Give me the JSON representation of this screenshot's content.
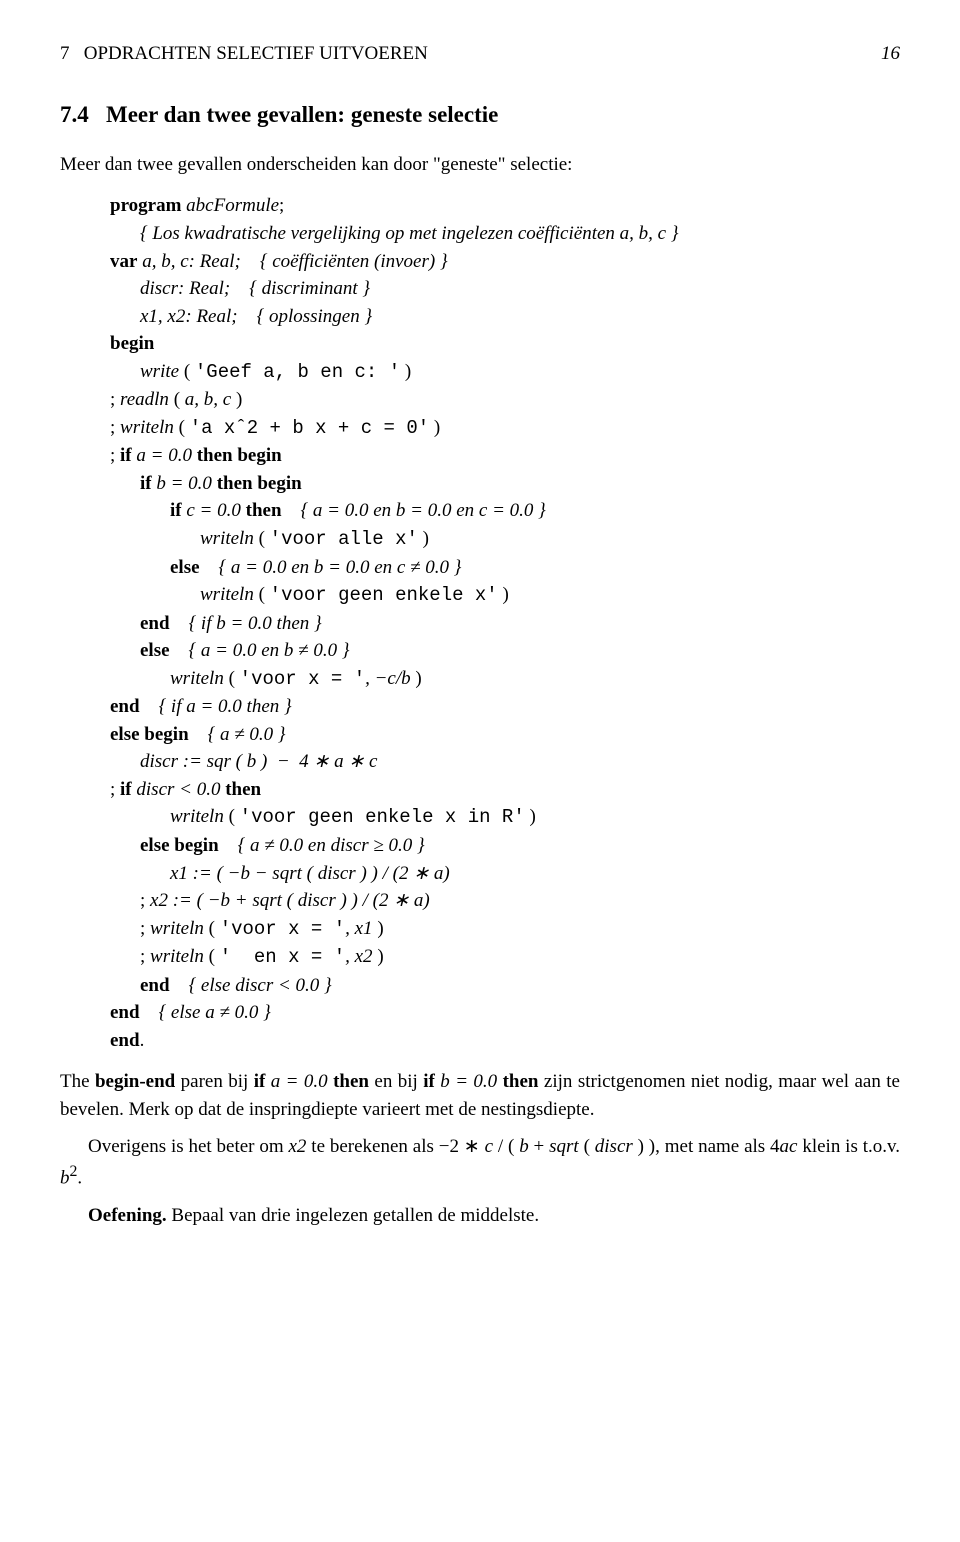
{
  "header": {
    "section_num": "7",
    "section_title": "OPDRACHTEN SELECTIEF UITVOEREN",
    "page_num": "16"
  },
  "title": {
    "num": "7.4",
    "text": "Meer dan twee gevallen: geneste selectie"
  },
  "intro": "Meer dan twee gevallen onderscheiden kan door \"geneste\" selectie:",
  "code": {
    "l1_kw": "program",
    "l1_name": "abcFormule",
    "l2_comment": "{ Los kwadratische vergelijking op met ingelezen coëfficiënten a, b, c }",
    "l3_kw": "var",
    "l3_vars": "a, b, c: Real;",
    "l3_comment": "{ coëfficiënten (invoer) }",
    "l4_var": "discr: Real;",
    "l4_comment": "{ discriminant }",
    "l5_var": "x1, x2: Real;",
    "l5_comment": "{ oplossingen }",
    "l6_kw": "begin",
    "l7_call": "write",
    "l7_str": "'Geef a, b en c: '",
    "l8_call": "readln",
    "l8_args": "a, b, c",
    "l9_call": "writeln",
    "l9_str": "'a xˆ2 + b x + c = 0'",
    "l10_kw1": "if",
    "l10_cond": "a = 0.0",
    "l10_kw2": "then begin",
    "l11_kw1": "if",
    "l11_cond": "b = 0.0",
    "l11_kw2": "then begin",
    "l12_kw1": "if",
    "l12_cond": "c = 0.0",
    "l12_kw2": "then",
    "l12_comment": "{ a = 0.0 en b = 0.0 en c = 0.0 }",
    "l13_call": "writeln",
    "l13_str": "'voor alle x'",
    "l14_kw": "else",
    "l14_comment": "{ a = 0.0 en b = 0.0 en c ≠ 0.0 }",
    "l15_call": "writeln",
    "l15_str": "'voor geen enkele x'",
    "l16_kw": "end",
    "l16_comment": "{ if b = 0.0 then }",
    "l17_kw": "else",
    "l17_comment": "{ a = 0.0 en b ≠ 0.0 }",
    "l18_call": "writeln",
    "l18_str": "'voor x = '",
    "l18_expr": ", −c/b",
    "l19_kw": "end",
    "l19_comment": "{ if a = 0.0 then }",
    "l20_kw": "else begin",
    "l20_comment": "{ a ≠ 0.0 }",
    "l21_var": "discr",
    "l21_expr": " := sqr ( b )  −  4 ∗ a ∗ c",
    "l22_kw1": "if",
    "l22_cond": "discr < 0.0",
    "l22_kw2": "then",
    "l23_call": "writeln",
    "l23_str": "'voor geen enkele x in R'",
    "l24_kw": "else begin",
    "l24_comment": "{ a ≠ 0.0 en discr ≥ 0.0 }",
    "l25_expr": "x1 := ( −b − sqrt ( discr ) ) / (2 ∗ a)",
    "l26_expr": "x2 := ( −b + sqrt ( discr ) ) / (2 ∗ a)",
    "l27_call": "writeln",
    "l27_str": "'voor x = '",
    "l27_arg": ", x1",
    "l28_call": "writeln",
    "l28_str": "'  en x = '",
    "l28_arg": ", x2",
    "l29_kw": "end",
    "l29_comment": "{ else discr < 0.0 }",
    "l30_kw": "end",
    "l30_comment": "{ else a ≠ 0.0 }",
    "l31_kw": "end"
  },
  "para1_a": "The ",
  "para1_b": "begin-end",
  "para1_c": " paren bij ",
  "para1_d": "if",
  "para1_e": " a = 0.0 ",
  "para1_f": "then",
  "para1_g": " en bij ",
  "para1_h": "if",
  "para1_i": " b = 0.0 ",
  "para1_j": "then",
  "para1_k": " zijn strictgenomen niet nodig, maar wel aan te bevelen. Merk op dat de inspringdiepte varieert met de nestingsdiepte.",
  "para2_a": "Overigens is het beter om ",
  "para2_b": "x2",
  "para2_c": " te berekenen als −2 ∗ ",
  "para2_d": "c",
  "para2_e": " / ( ",
  "para2_f": "b",
  "para2_g": " + ",
  "para2_h": "sqrt",
  "para2_i": " ( ",
  "para2_j": "discr",
  "para2_k": " ) ), met name als 4",
  "para2_l": "ac",
  "para2_m": " klein is t.o.v. ",
  "para2_n": "b",
  "para2_o": "2",
  "para2_p": ".",
  "oef_label": "Oefening.",
  "oef_text": " Bepaal van drie ingelezen getallen de middelste."
}
